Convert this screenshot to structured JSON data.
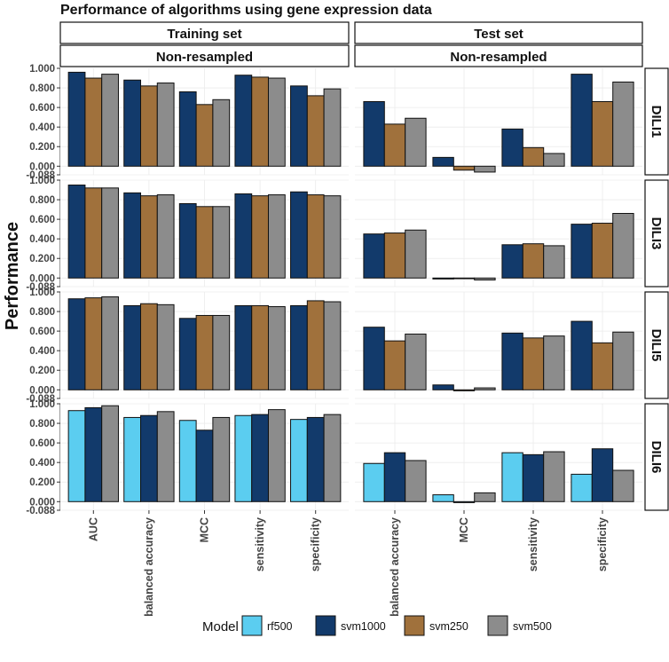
{
  "chart_data": {
    "type": "bar",
    "title": "Performance of algorithms using gene expression data",
    "ylabel": "Performance",
    "ylim": [
      -0.088,
      1.0
    ],
    "yticks": [
      1.0,
      0.8,
      0.6,
      0.4,
      0.2,
      0.0,
      -0.088
    ],
    "ytick_labels": [
      "1.000",
      "0.800",
      "0.600",
      "0.400",
      "0.200",
      "0.000",
      "-0.088"
    ],
    "columns": [
      {
        "title": "Training set",
        "subtitle": "Non-resampled",
        "categories": [
          "AUC",
          "balanced accuracy",
          "MCC",
          "sensitivity",
          "specificity"
        ]
      },
      {
        "title": "Test set",
        "subtitle": "Non-resampled",
        "categories": [
          "balanced accuracy",
          "MCC",
          "sensitivity",
          "specificity"
        ]
      }
    ],
    "legend": {
      "title": "Model",
      "position": "bottom",
      "entries": [
        {
          "name": "rf500",
          "color": "#5bcdf0"
        },
        {
          "name": "svm1000",
          "color": "#123a6b"
        },
        {
          "name": "svm250",
          "color": "#a0713c"
        },
        {
          "name": "svm500",
          "color": "#8c8c8c"
        }
      ]
    },
    "rows": [
      {
        "label": "DILI1",
        "models": [
          "svm1000",
          "svm250",
          "svm500"
        ],
        "training": [
          [
            0.96,
            0.9,
            0.94
          ],
          [
            0.88,
            0.82,
            0.85
          ],
          [
            0.76,
            0.63,
            0.68
          ],
          [
            0.93,
            0.91,
            0.9
          ],
          [
            0.82,
            0.72,
            0.79
          ]
        ],
        "test": [
          [
            0.66,
            0.43,
            0.49
          ],
          [
            0.09,
            -0.04,
            -0.06
          ],
          [
            0.38,
            0.19,
            0.13
          ],
          [
            0.94,
            0.66,
            0.86
          ]
        ]
      },
      {
        "label": "DILI3",
        "models": [
          "svm1000",
          "svm250",
          "svm500"
        ],
        "training": [
          [
            0.95,
            0.92,
            0.92
          ],
          [
            0.87,
            0.84,
            0.85
          ],
          [
            0.76,
            0.73,
            0.73
          ],
          [
            0.86,
            0.84,
            0.85
          ],
          [
            0.88,
            0.85,
            0.84
          ]
        ],
        "test": [
          [
            0.45,
            0.46,
            0.49
          ],
          [
            -0.01,
            0.0,
            -0.02
          ],
          [
            0.34,
            0.35,
            0.33
          ],
          [
            0.55,
            0.56,
            0.66
          ]
        ]
      },
      {
        "label": "DILI5",
        "models": [
          "svm1000",
          "svm250",
          "svm500"
        ],
        "training": [
          [
            0.93,
            0.94,
            0.95
          ],
          [
            0.86,
            0.88,
            0.87
          ],
          [
            0.73,
            0.76,
            0.76
          ],
          [
            0.86,
            0.86,
            0.85
          ],
          [
            0.86,
            0.91,
            0.9
          ]
        ],
        "test": [
          [
            0.64,
            0.5,
            0.57
          ],
          [
            0.05,
            -0.01,
            0.02
          ],
          [
            0.58,
            0.53,
            0.55
          ],
          [
            0.7,
            0.48,
            0.59
          ]
        ]
      },
      {
        "label": "DILI6",
        "models": [
          "rf500",
          "svm1000",
          "svm500"
        ],
        "training": [
          [
            0.93,
            0.96,
            0.98
          ],
          [
            0.86,
            0.88,
            0.92
          ],
          [
            0.83,
            0.73,
            0.86
          ],
          [
            0.88,
            0.89,
            0.94
          ],
          [
            0.84,
            0.86,
            0.89
          ]
        ],
        "test": [
          [
            0.39,
            0.5,
            0.42
          ],
          [
            0.07,
            -0.01,
            0.09
          ],
          [
            0.5,
            0.48,
            0.51
          ],
          [
            0.28,
            0.54,
            0.32
          ]
        ]
      }
    ]
  }
}
